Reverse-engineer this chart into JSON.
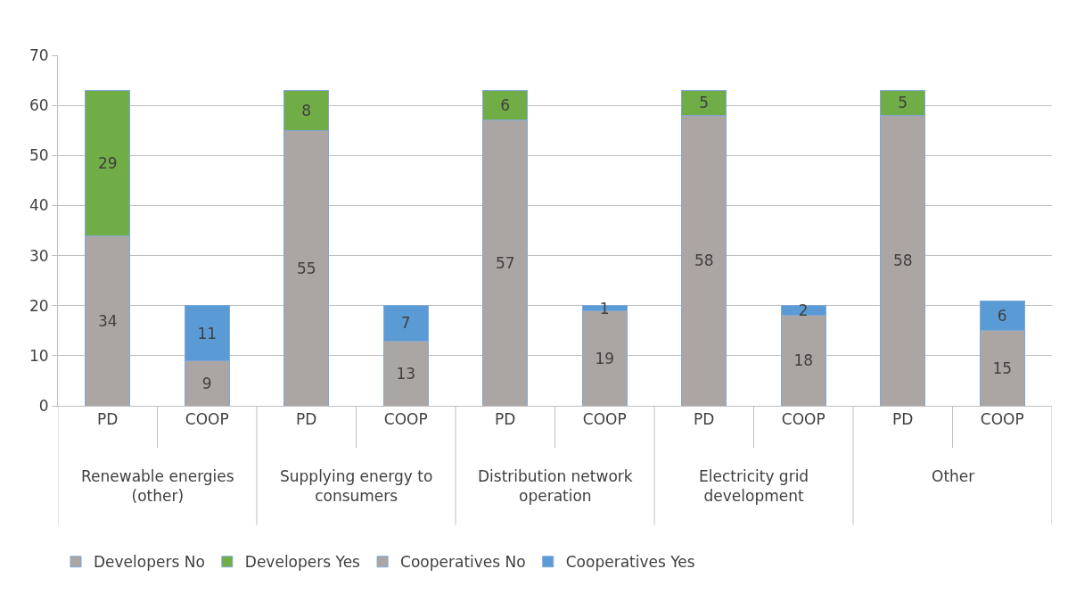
{
  "chart_data": {
    "type": "bar",
    "stacked": true,
    "data_labels": true,
    "grid": "y",
    "legend": "bottom",
    "categories": [
      "PD",
      "COOP",
      "PD",
      "COOP",
      "PD",
      "COOP",
      "PD",
      "COOP",
      "PD",
      "COOP"
    ],
    "annotations": [
      "Renewable energies (other)",
      "Supplying energy to consumers",
      "Distribution network operation",
      "Electricity grid development",
      "Other"
    ],
    "ylim": [
      0,
      70
    ],
    "yticks": [
      0,
      10,
      20,
      30,
      40,
      50,
      60,
      70
    ],
    "series": [
      {
        "name": "Developers No",
        "color": "#aba6a3",
        "values": [
          34,
          null,
          55,
          null,
          57,
          null,
          58,
          null,
          58,
          null
        ]
      },
      {
        "name": "Developers Yes",
        "color": "#70ad47",
        "values": [
          29,
          null,
          8,
          null,
          6,
          null,
          5,
          null,
          5,
          null
        ]
      },
      {
        "name": "Cooperatives No",
        "color": "#aba6a3",
        "values": [
          null,
          9,
          null,
          13,
          null,
          19,
          null,
          18,
          null,
          15
        ]
      },
      {
        "name": "Cooperatives Yes",
        "color": "#5b9bd5",
        "values": [
          null,
          11,
          null,
          7,
          null,
          1,
          null,
          2,
          null,
          6
        ]
      }
    ]
  }
}
